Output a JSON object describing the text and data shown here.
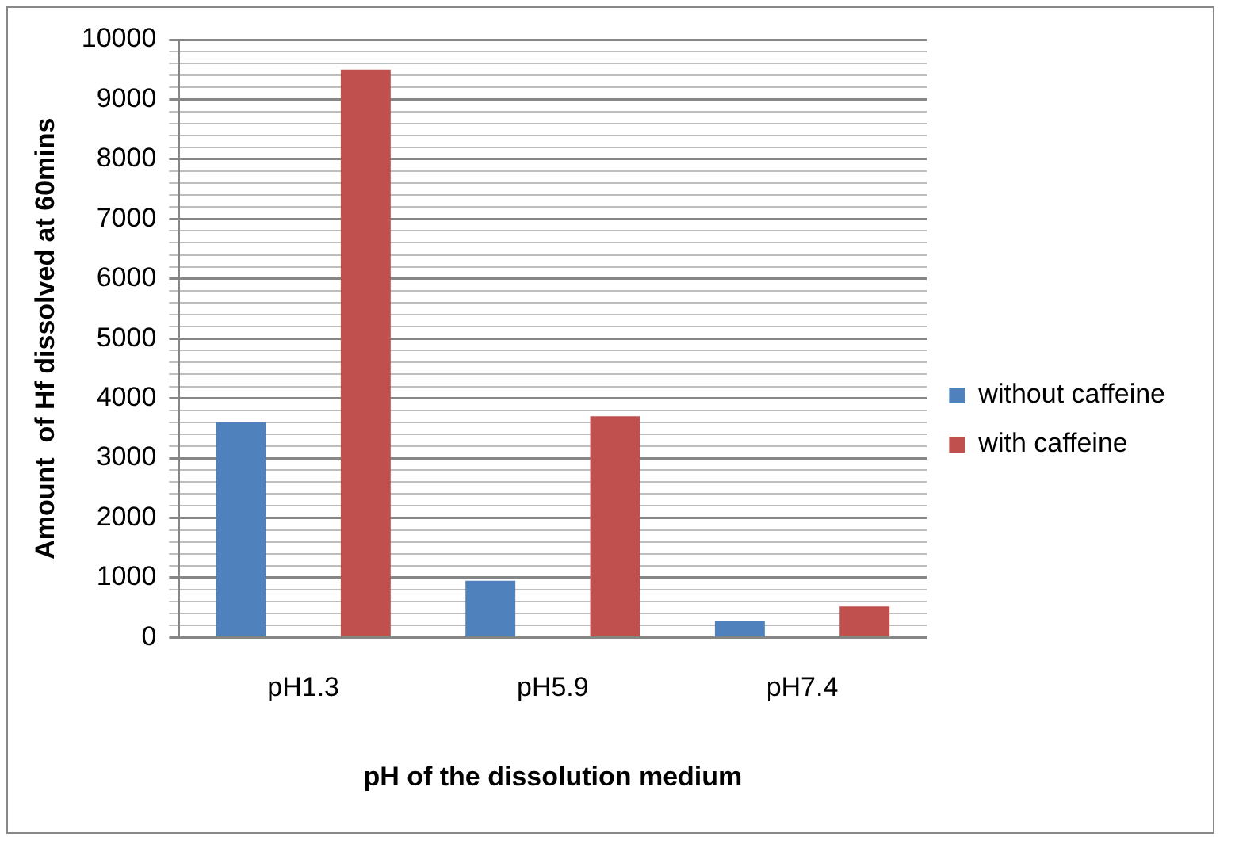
{
  "chart_data": {
    "type": "bar",
    "xlabel": "pH of the dissolution medium",
    "ylabel": "Amount  of Hf dissolved at 60mins",
    "categories": [
      "pH1.3",
      "pH5.9",
      "pH7.4"
    ],
    "series": [
      {
        "name": "without caffeine",
        "color": "#4f81bd",
        "values": [
          3600,
          950,
          270
        ]
      },
      {
        "name": "with caffeine",
        "color": "#c0504d",
        "values": [
          9500,
          3700,
          520
        ]
      }
    ],
    "ylim": [
      0,
      10000
    ],
    "yticks": [
      0,
      {
        "value": 200,
        "label": null
      },
      {
        "value": 400,
        "label": null
      },
      {
        "value": 600,
        "label": null
      },
      {
        "value": 800,
        "label": null
      },
      1000,
      {
        "value": 1200,
        "label": null
      },
      {
        "value": 1400,
        "label": null
      },
      {
        "value": 1600,
        "label": null
      },
      {
        "value": 1800,
        "label": null
      },
      2000,
      {
        "value": 2200,
        "label": null
      },
      {
        "value": 2400,
        "label": null
      },
      {
        "value": 2600,
        "label": null
      },
      {
        "value": 2800,
        "label": null
      },
      3000,
      {
        "value": 3200,
        "label": null
      },
      {
        "value": 3400,
        "label": null
      },
      {
        "value": 3600,
        "label": null
      },
      {
        "value": 3800,
        "label": null
      },
      4000,
      {
        "value": 4200,
        "label": null
      },
      {
        "value": 4400,
        "label": null
      },
      {
        "value": 4600,
        "label": null
      },
      {
        "value": 4800,
        "label": null
      },
      5000,
      {
        "value": 5200,
        "label": null
      },
      {
        "value": 5400,
        "label": null
      },
      {
        "value": 5600,
        "label": null
      },
      {
        "value": 5800,
        "label": null
      },
      6000,
      {
        "value": 6200,
        "label": null
      },
      {
        "value": 6400,
        "label": null
      },
      {
        "value": 6600,
        "label": null
      },
      {
        "value": 6800,
        "label": null
      },
      7000,
      {
        "value": 7200,
        "label": null
      },
      {
        "value": 7400,
        "label": null
      },
      {
        "value": 7600,
        "label": null
      },
      {
        "value": 7800,
        "label": null
      },
      8000,
      {
        "value": 8200,
        "label": null
      },
      {
        "value": 8400,
        "label": null
      },
      {
        "value": 8600,
        "label": null
      },
      {
        "value": 8800,
        "label": null
      },
      9000,
      {
        "value": 9200,
        "label": null
      },
      {
        "value": 9400,
        "label": null
      },
      {
        "value": 9600,
        "label": null
      },
      {
        "value": 9800,
        "label": null
      },
      10000
    ],
    "grid": "y",
    "legend": "right"
  }
}
